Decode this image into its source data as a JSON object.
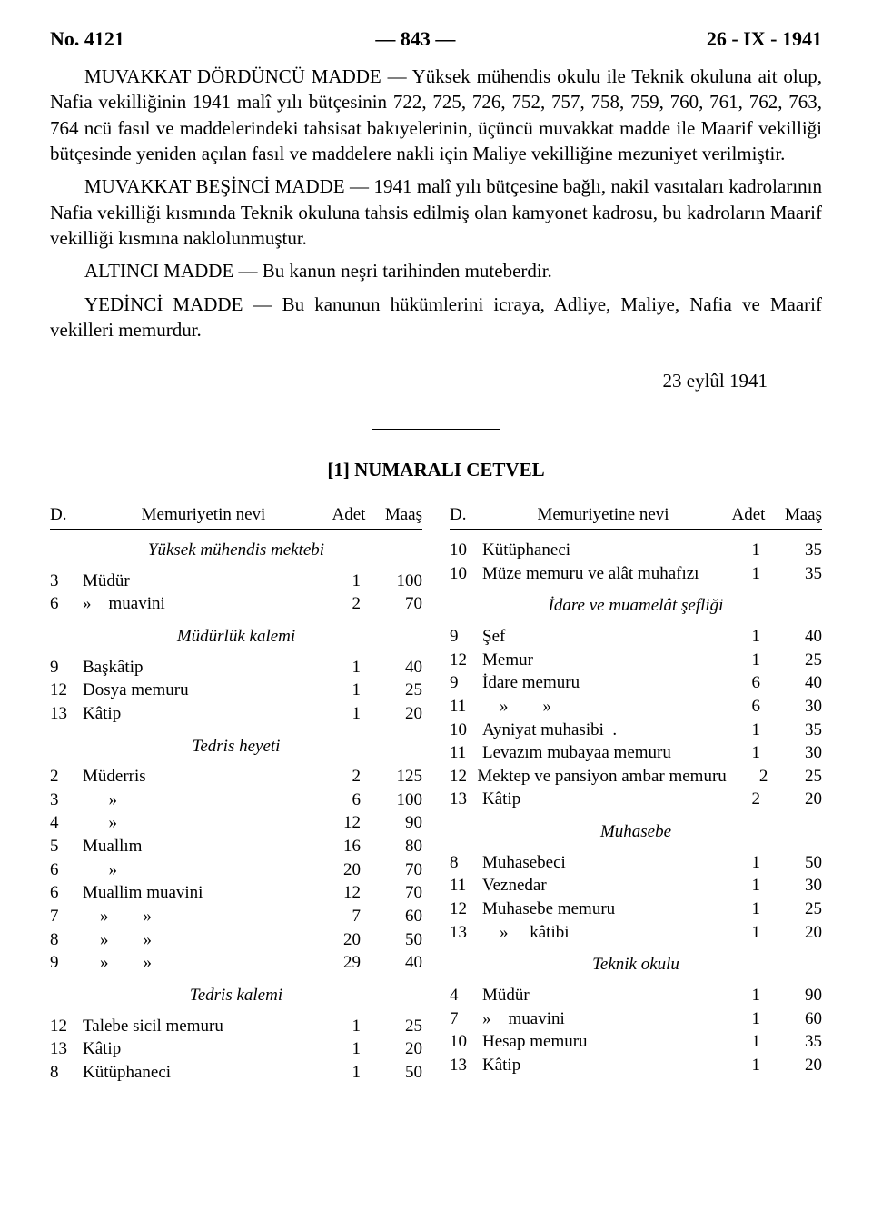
{
  "header": {
    "left": "No. 4121",
    "center": "— 843 —",
    "right": "26 - IX - 1941"
  },
  "paragraphs": [
    "MUVAKKAT DÖRDÜNCÜ MADDE — Yüksek mühendis okulu ile Teknik okuluna ait olup, Nafia vekilliğinin 1941 malî yılı bütçesinin 722, 725, 726, 752, 757, 758, 759, 760, 761, 762, 763, 764 ncü fasıl ve maddelerindeki tahsisat bakıyelerinin, üçüncü muvakkat madde ile Maarif vekilliği bütçesinde yeniden açılan fasıl ve maddelere nakli için Maliye vekilliğine mezuniyet verilmiştir.",
    "MUVAKKAT BEŞİNCİ MADDE — 1941 malî yılı bütçesine bağlı, nakil vasıtaları kadrolarının Nafia vekilliği kısmında Teknik okuluna tahsis edilmiş olan kamyonet kadrosu, bu kadroların Maarif vekilliği kısmına naklolunmuştur.",
    "ALTINCI MADDE — Bu kanun neşri tarihinden muteberdir.",
    "YEDİNCİ MADDE — Bu kanunun hükümlerini icraya, Adliye, Maliye, Nafia ve Maarif vekilleri memurdur."
  ],
  "date": "23 eylûl 1941",
  "cetvel_title": "[1] NUMARALI CETVEL",
  "col_headers": {
    "d": "D.",
    "nevi_left": "Memuriyetin nevi",
    "nevi_right": "Memuriyetine nevi",
    "adet": "Adet",
    "maas": "Maaş"
  },
  "left_col": [
    {
      "type": "section",
      "text": "Yüksek mühendis mektebi"
    },
    {
      "type": "row",
      "d": "3",
      "nevi": "Müdür",
      "adet": "1",
      "maas": "100"
    },
    {
      "type": "row",
      "d": "6",
      "nevi": "»    muavini",
      "adet": "2",
      "maas": "70"
    },
    {
      "type": "section",
      "text": "Müdürlük kalemi"
    },
    {
      "type": "row",
      "d": "9",
      "nevi": "Başkâtip",
      "adet": "1",
      "maas": "40"
    },
    {
      "type": "row",
      "d": "12",
      "nevi": "Dosya memuru",
      "adet": "1",
      "maas": "25"
    },
    {
      "type": "row",
      "d": "13",
      "nevi": "Kâtip",
      "adet": "1",
      "maas": "20"
    },
    {
      "type": "section",
      "text": "Tedris heyeti"
    },
    {
      "type": "row",
      "d": "2",
      "nevi": "Müderris",
      "adet": "2",
      "maas": "125"
    },
    {
      "type": "row",
      "d": "3",
      "nevi": "      »",
      "adet": "6",
      "maas": "100"
    },
    {
      "type": "row",
      "d": "4",
      "nevi": "      »",
      "adet": "12",
      "maas": "90"
    },
    {
      "type": "row",
      "d": "5",
      "nevi": "Muallım",
      "adet": "16",
      "maas": "80"
    },
    {
      "type": "row",
      "d": "6",
      "nevi": "      »",
      "adet": "20",
      "maas": "70"
    },
    {
      "type": "row",
      "d": "6",
      "nevi": "Muallim muavini",
      "adet": "12",
      "maas": "70"
    },
    {
      "type": "row",
      "d": "7",
      "nevi": "    »        »",
      "adet": "7",
      "maas": "60"
    },
    {
      "type": "row",
      "d": "8",
      "nevi": "    »        »",
      "adet": "20",
      "maas": "50"
    },
    {
      "type": "row",
      "d": "9",
      "nevi": "    »        »",
      "adet": "29",
      "maas": "40"
    },
    {
      "type": "section",
      "text": "Tedris kalemi"
    },
    {
      "type": "row",
      "d": "12",
      "nevi": "Talebe sicil memuru",
      "adet": "1",
      "maas": "25"
    },
    {
      "type": "row",
      "d": "13",
      "nevi": "Kâtip",
      "adet": "1",
      "maas": "20"
    },
    {
      "type": "row",
      "d": "8",
      "nevi": "Kütüphaneci",
      "adet": "1",
      "maas": "50"
    }
  ],
  "right_col": [
    {
      "type": "row",
      "d": "10",
      "nevi": "Kütüphaneci",
      "adet": "1",
      "maas": "35"
    },
    {
      "type": "row",
      "d": "10",
      "nevi": "Müze memuru ve alât muhafızı",
      "adet": "1",
      "maas": "35"
    },
    {
      "type": "section",
      "text": "İdare ve muamelât şefliği"
    },
    {
      "type": "row",
      "d": "9",
      "nevi": "Şef",
      "adet": "1",
      "maas": "40"
    },
    {
      "type": "row",
      "d": "12",
      "nevi": "Memur",
      "adet": "1",
      "maas": "25"
    },
    {
      "type": "row",
      "d": "9",
      "nevi": "İdare memuru",
      "adet": "6",
      "maas": "40"
    },
    {
      "type": "row",
      "d": "11",
      "nevi": "    »        »",
      "adet": "6",
      "maas": "30"
    },
    {
      "type": "row",
      "d": "10",
      "nevi": "Ayniyat muhasibi  .",
      "adet": "1",
      "maas": "35"
    },
    {
      "type": "row",
      "d": "11",
      "nevi": "Levazım mubayaa memuru",
      "adet": "1",
      "maas": "30"
    },
    {
      "type": "row",
      "d": "12",
      "nevi": "Mektep ve pansiyon ambar memuru",
      "adet": "2",
      "maas": "25"
    },
    {
      "type": "row",
      "d": "13",
      "nevi": "Kâtip",
      "adet": "2",
      "maas": "20"
    },
    {
      "type": "section",
      "text": "Muhasebe"
    },
    {
      "type": "row",
      "d": "8",
      "nevi": "Muhasebeci",
      "adet": "1",
      "maas": "50"
    },
    {
      "type": "row",
      "d": "11",
      "nevi": "Veznedar",
      "adet": "1",
      "maas": "30"
    },
    {
      "type": "row",
      "d": "12",
      "nevi": "Muhasebe memuru",
      "adet": "1",
      "maas": "25"
    },
    {
      "type": "row",
      "d": "13",
      "nevi": "    »     kâtibi",
      "adet": "1",
      "maas": "20"
    },
    {
      "type": "section",
      "text": "Teknik okulu"
    },
    {
      "type": "row",
      "d": "4",
      "nevi": "Müdür",
      "adet": "1",
      "maas": "90"
    },
    {
      "type": "row",
      "d": "7",
      "nevi": "»    muavini",
      "adet": "1",
      "maas": "60"
    },
    {
      "type": "row",
      "d": "10",
      "nevi": "Hesap memuru",
      "adet": "1",
      "maas": "35"
    },
    {
      "type": "row",
      "d": "13",
      "nevi": "Kâtip",
      "adet": "1",
      "maas": "20"
    }
  ]
}
